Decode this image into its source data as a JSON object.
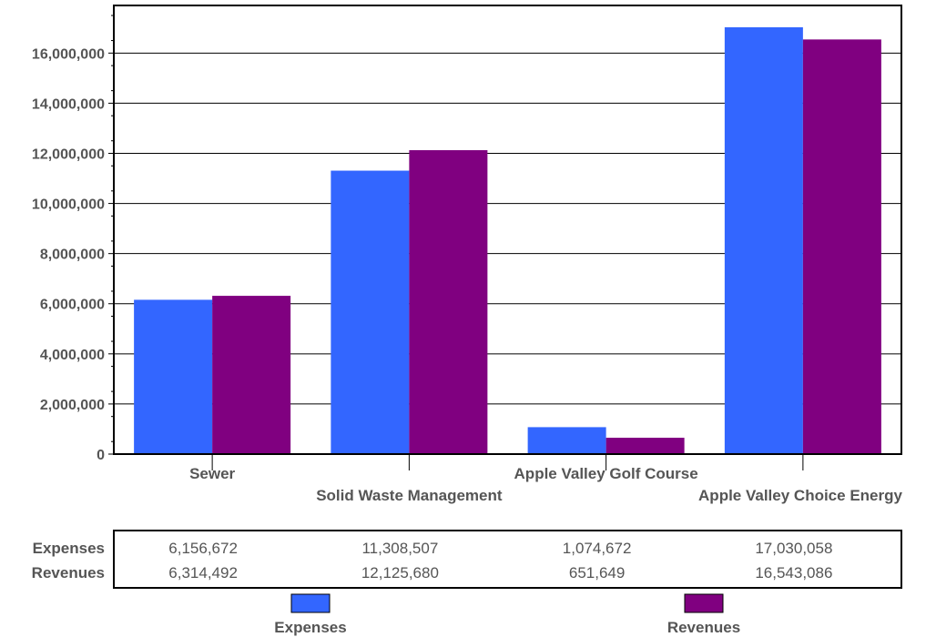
{
  "chart_data": {
    "type": "bar",
    "categories": [
      "Sewer",
      "Solid Waste Management",
      "Apple Valley Golf Course",
      "Apple Valley Choice Energy"
    ],
    "series": [
      {
        "name": "Expenses",
        "color": "#3366ff",
        "values": [
          6156672,
          11308507,
          1074672,
          17030058
        ],
        "labels": [
          "6,156,672",
          "11,308,507",
          "1,074,672",
          "17,030,058"
        ]
      },
      {
        "name": "Revenues",
        "color": "#800080",
        "values": [
          6314492,
          12125680,
          651649,
          16543086
        ],
        "labels": [
          "6,314,492",
          "12,125,680",
          "651,649",
          "16,543,086"
        ]
      }
    ],
    "yticks": [
      0,
      2000000,
      4000000,
      6000000,
      8000000,
      10000000,
      12000000,
      14000000,
      16000000
    ],
    "ytick_labels": [
      "0",
      "2,000,000",
      "4,000,000",
      "6,000,000",
      "8,000,000",
      "10,000,000",
      "12,000,000",
      "14,000,000",
      "16,000,000"
    ],
    "ylim": [
      0,
      17900000
    ],
    "grid": true,
    "legend": "bottom",
    "data_table": true
  }
}
